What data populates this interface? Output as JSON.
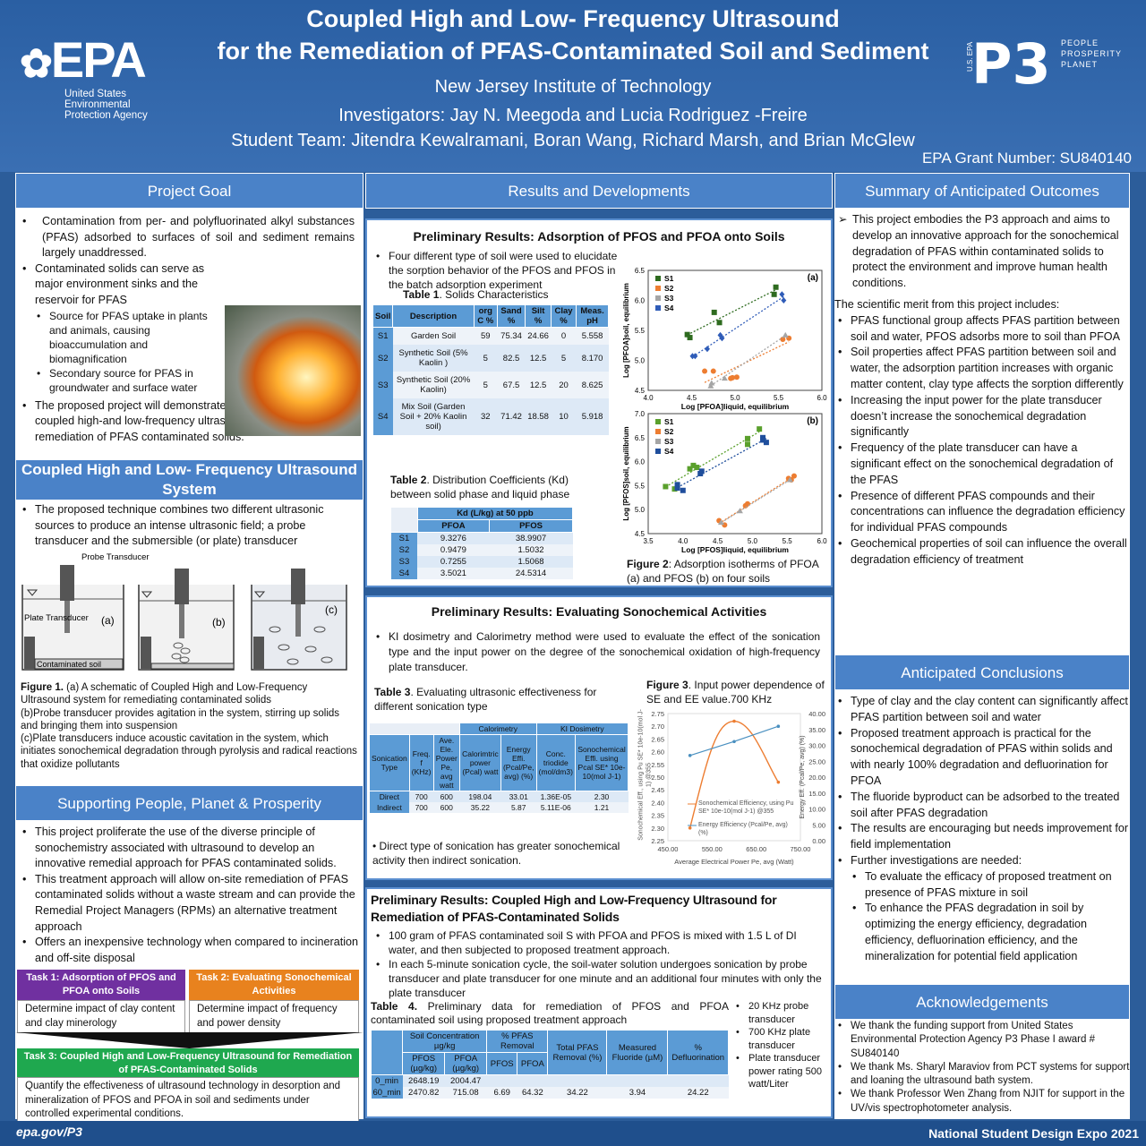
{
  "header": {
    "title_line1": "Coupled High and Low- Frequency Ultrasound",
    "title_line2": "for the Remediation of PFAS-Contaminated Soil and Sediment",
    "institution": "New Jersey Institute of Technology",
    "investigators": "Investigators: Jay N. Meegoda and Lucia Rodriguez -Freire",
    "student_team": "Student Team: Jitendra Kewalramani, Boran Wang, Richard Marsh, and Brian McGlew",
    "grant": "EPA Grant Number: SU840140"
  },
  "epa_logo": {
    "name": "EPA",
    "line1": "United States",
    "line2": "Environmental",
    "line3": "Protection Agency"
  },
  "p3_logo": {
    "mark": "P3",
    "side": "U.S. EPA",
    "w1": "PEOPLE",
    "w2": "PROSPERITY",
    "w3": "PLANET"
  },
  "project_goal": {
    "heading": "Project Goal",
    "b1": "Contamination from per- and polyfluorinated alkyl substances (PFAS) adsorbed to surfaces of soil and sediment remains largely unaddressed.",
    "b2": "Contaminated solids can serve as major environment sinks and the reservoir for PFAS",
    "s1": "Source for PFAS uptake in plants and animals, causing bioaccumulation and biomagnification",
    "s2": "Secondary source for PFAS in groundwater and surface water",
    "b3": "The proposed project will  demonstrate the feasibility of the coupled high-and low-frequency ultrasound technology for remediation of PFAS contaminated solids."
  },
  "coupled_system": {
    "heading": "Coupled High and Low- Frequency Ultrasound System",
    "b1": "The proposed technique combines two different ultrasonic sources to produce an intense ultrasonic field; a probe transducer and the submersible (or plate) transducer",
    "label_probe": "Probe Transducer",
    "label_plate": "Plate Transducer",
    "label_soil": "Contaminated soil",
    "a": "(a)",
    "b": "(b)",
    "c": "(c)",
    "fig_label": "Figure 1.",
    "fig_caption": " (a) A schematic of Coupled High and Low-Frequency Ultrasound system for remediating contaminated solids",
    "fig_b": "(b)Probe transducer provides agitation in the system, stirring up solids and bringing them into suspension",
    "fig_c": "(c)Plate transducers induce acoustic cavitation in the system, which initiates sonochemical degradation through pyrolysis and radical reactions that oxidize pollutants"
  },
  "supporting": {
    "heading": "Supporting People, Planet & Prosperity",
    "b1": "This project proliferate the use of the diverse principle of sonochemistry associated with ultrasound to develop an innovative remedial approach for PFAS contaminated solids.",
    "b2": "This treatment approach will allow on-site remediation of PFAS contaminated solids without a waste stream and can provide the Remedial Project Managers (RPMs) an alternative treatment approach",
    "b3": "Offers an inexpensive technology when compared to incineration and off-site disposal"
  },
  "tasks": [
    {
      "title": "Task 1: Adsorption of PFOS and PFOA onto Soils",
      "body": "Determine impact of clay content and clay minerology",
      "color": "#7030a0"
    },
    {
      "title": "Task 2: Evaluating Sonochemical Activities",
      "body": "Determine impact of frequency and power density",
      "color": "#e8821e"
    },
    {
      "title": "Task 3: Coupled High and Low-Frequency Ultrasound for Remediation of PFAS-Contaminated Solids",
      "body": "Quantify the effectiveness of ultrasound technology in desorption and mineralization of PFOS  and PFOA in soil and sediments under controlled experimental conditions.",
      "color": "#1fa84f"
    }
  ],
  "results": {
    "heading": "Results and Developments",
    "p1": {
      "title": "Preliminary Results: Adsorption of PFOS and PFOA onto Soils",
      "b1": "Four different type of soil were used to elucidate the sorption behavior of the PFOS and PFOS  in the batch adsorption experiment",
      "table1": {
        "label": "Table 1",
        "caption": ". Solids Characteristics",
        "headers": [
          "Soil",
          "Description",
          "org C %",
          "Sand %",
          "Silt %",
          "Clay %",
          "Meas. pH"
        ],
        "rows": [
          [
            "S1",
            "Garden Soil",
            "59",
            "75.34",
            "24.66",
            "0",
            "5.558"
          ],
          [
            "S2",
            "Synthetic Soil (5%  Kaolin )",
            "5",
            "82.5",
            "12.5",
            "5",
            "8.170"
          ],
          [
            "S3",
            "Synthetic Soil (20%  Kaolin)",
            "5",
            "67.5",
            "12.5",
            "20",
            "8.625"
          ],
          [
            "S4",
            "Mix Soil (Garden Soil + 20% Kaolin soil)",
            "32",
            "71.42",
            "18.58",
            "10",
            "5.918"
          ]
        ]
      },
      "table2": {
        "label": "Table 2",
        "caption": ". Distribution Coefficients (Kd) between solid phase and liquid phase",
        "group": "Kd (L/kg) at 50 ppb",
        "headers": [
          "PFOA",
          "PFOS"
        ],
        "rows": [
          [
            "S1",
            "9.3276",
            "38.9907"
          ],
          [
            "S2",
            "0.9479",
            "1.5032"
          ],
          [
            "S3",
            "0.7255",
            "1.5068"
          ],
          [
            "S4",
            "3.5021",
            "24.5314"
          ]
        ]
      },
      "fig_label": "Figure 2",
      "fig_caption": ": Adsorption isotherms of PFOA (a) and PFOS (b) on four soils"
    },
    "p2": {
      "title": "Preliminary Results: Evaluating Sonochemical Activities",
      "b1": "KI dosimetry and Calorimetry method were used to evaluate the effect of the sonication type and the  input power on the degree of the sonochemical oxidation of high-frequency plate transducer.",
      "table3": {
        "label": "Table  3",
        "caption": ". Evaluating ultrasonic effectiveness for different sonication type",
        "group1": "Calorimetry",
        "group2": "KI Dosimetry",
        "headers": [
          "Sonication Type",
          "Freq. f (KHz)",
          "Ave. Ele. Power Pe, avg watt",
          "Calorimtric power (Pcal) watt",
          "Energy Effi. (Pcal/Pe, avg) (%)",
          "Conc. triodide (mol/dm3)",
          "Sonochemical Effi. using Pcal SE* 10e-10(mol J-1)"
        ],
        "rows": [
          [
            "Direct",
            "700",
            "600",
            "198.04",
            "33.01",
            "1.36E-05",
            "2.30"
          ],
          [
            "Indirect",
            "700",
            "600",
            "35.22",
            "5.87",
            "5.11E-06",
            "1.21"
          ]
        ]
      },
      "b2": "Direct type of sonication has greater sonochemical activity then indirect sonication.",
      "fig_label": "Figure 3",
      "fig_caption": ". Input power dependence of SE and EE value.700 KHz"
    },
    "p3": {
      "title": "Preliminary Results: Coupled High and Low-Frequency Ultrasound for Remediation of PFAS-Contaminated Solids",
      "b1": "100 gram of PFAS contaminated soil S with PFOA and PFOS  is mixed with 1.5 L of DI water, and then subjected to proposed treatment approach.",
      "b2": "In each 5-minute sonication cycle, the soil-water solution undergoes sonication by probe transducer and plate transducer for one minute and an additional four minutes with only the plate transducer",
      "table4": {
        "label": "Table  4.",
        "caption": " Preliminary data for remediation of PFOS and PFOA contaminated soil using proposed treatment approach",
        "h_conc": "Soil Concentration µg/kg",
        "h_rem": "% PFAS Removal",
        "h_total": "Total PFAS Removal (%)",
        "h_fluor": "Measured Fluoride (µM)",
        "h_defl": "% Defluorination",
        "sub": [
          "PFOS (µg/kg)",
          "PFOA (µg/kg)",
          "PFOS",
          "PFOA"
        ],
        "rows": [
          [
            "0_min",
            "2648.19",
            "2004.47",
            "",
            "",
            "",
            "",
            ""
          ],
          [
            "60_min",
            "2470.82",
            "715.08",
            "6.69",
            "64.32",
            "34.22",
            "3.94",
            "24.22"
          ]
        ]
      },
      "side": [
        "20 KHz probe transducer",
        "700 KHz plate transducer",
        "Plate transducer power rating 500 watt/Liter"
      ]
    }
  },
  "summary": {
    "heading": "Summary of  Anticipated Outcomes",
    "intro": "This project embodies the P3 approach and aims to develop an innovative approach for the sonochemical degradation of PFAS within contaminated solids to protect the environment and improve human health conditions.",
    "merit": "The scientific merit from this project includes:",
    "items": [
      "PFAS functional group affects PFAS partition between soil and water, PFOS adsorbs more to soil than PFOA",
      "Soil properties affect PFAS partition between soil and water, the adsorption partition increases with organic matter content, clay type affects the sorption differently",
      "Increasing the input power for the plate transducer doesn’t increase the sonochemical degradation significantly",
      "Frequency of the plate transducer can have a significant effect on the sonochemical degradation of the PFAS",
      "Presence of different PFAS compounds and their concentrations can influence the degradation efficiency for individual PFAS compounds",
      "Geochemical properties of soil can influence the overall degradation efficiency of treatment"
    ]
  },
  "conclusions": {
    "heading": "Anticipated Conclusions",
    "items": [
      "Type of clay and the clay content can significantly affect PFAS partition between soil and water",
      "Proposed treatment approach is practical for the sonochemical degradation of PFAS within solids and with nearly 100% degradation and defluorination for PFOA",
      "The fluoride byproduct can be adsorbed to the treated soil after PFAS degradation",
      "The results are encouraging but needs improvement for field implementation",
      "Further investigations are needed:"
    ],
    "sub": [
      "To evaluate the efficacy of proposed treatment on presence of PFAS mixture in soil",
      "To enhance the PFAS degradation in soil by optimizing the energy efficiency, degradation efficiency, defluorination efficiency, and the mineralization for potential field application"
    ]
  },
  "ack": {
    "heading": "Acknowledgements",
    "items": [
      "We thank the funding support from United States Environmental Protection Agency P3 Phase I award # SU840140",
      "We thank Ms. Sharyl Maraviov from PCT systems for support and loaning the ultrasound bath system.",
      "We thank  Professor Wen Zhang from NJIT for support in the UV/vis spectrophotometer analysis."
    ]
  },
  "footer": {
    "left": "epa.gov/P3",
    "right": "National Student Design Expo 2021"
  },
  "chart_data": [
    {
      "type": "scatter",
      "panel": "(a)",
      "xlabel": "Log [PFOA]liquid, equilibrium",
      "ylabel": "Log [PFOA]soil, equilibrium",
      "xlim": [
        4.0,
        6.0
      ],
      "ylim": [
        4.5,
        6.5
      ],
      "xticks": [
        "4.0",
        "4.5",
        "5.0",
        "5.5",
        "6.0"
      ],
      "yticks": [
        "4.5",
        "5.0",
        "5.5",
        "6.0",
        "6.5"
      ],
      "legend": "top-left",
      "trendlines": true,
      "series": [
        {
          "name": "S1",
          "color": "#2e6b1f",
          "marker": "square",
          "points": [
            [
              4.45,
              5.43
            ],
            [
              4.48,
              5.38
            ],
            [
              4.76,
              5.8
            ],
            [
              4.82,
              5.63
            ],
            [
              5.45,
              6.1
            ],
            [
              5.47,
              6.22
            ]
          ]
        },
        {
          "name": "S2",
          "color": "#ed7d31",
          "marker": "circle",
          "points": [
            [
              4.65,
              4.82
            ],
            [
              4.75,
              4.82
            ],
            [
              4.95,
              4.7
            ],
            [
              4.97,
              4.71
            ],
            [
              5.02,
              4.72
            ],
            [
              5.55,
              5.35
            ],
            [
              5.62,
              5.37
            ]
          ]
        },
        {
          "name": "S3",
          "color": "#a5a5a5",
          "marker": "triangle",
          "points": [
            [
              4.72,
              4.57
            ],
            [
              4.73,
              4.62
            ],
            [
              4.88,
              4.7
            ],
            [
              5.58,
              5.42
            ]
          ]
        },
        {
          "name": "S4",
          "color": "#2f5cb8",
          "marker": "diamond",
          "points": [
            [
              4.51,
              5.07
            ],
            [
              4.54,
              5.07
            ],
            [
              4.68,
              5.19
            ],
            [
              4.83,
              5.42
            ],
            [
              4.85,
              5.37
            ],
            [
              5.54,
              6.1
            ],
            [
              5.56,
              6.0
            ]
          ]
        }
      ]
    },
    {
      "type": "scatter",
      "panel": "(b)",
      "xlabel": "Log [PFOS]liquid, equilibrium",
      "ylabel": "Log [PFOS]soil, equilibrium",
      "xlim": [
        3.5,
        6.0
      ],
      "ylim": [
        4.5,
        7.0
      ],
      "xticks": [
        "3.5",
        "4.0",
        "4.5",
        "5.0",
        "5.5",
        "6.0"
      ],
      "yticks": [
        "4.5",
        "5.0",
        "5.5",
        "6.0",
        "6.5",
        "7.0"
      ],
      "legend": "top-left",
      "trendlines": true,
      "series": [
        {
          "name": "S1",
          "color": "#5aa02c",
          "marker": "square",
          "points": [
            [
              3.75,
              5.48
            ],
            [
              3.88,
              5.43
            ],
            [
              4.1,
              5.85
            ],
            [
              4.15,
              5.92
            ],
            [
              4.2,
              5.88
            ],
            [
              4.93,
              6.48
            ],
            [
              4.93,
              6.36
            ],
            [
              5.1,
              6.68
            ]
          ]
        },
        {
          "name": "S2",
          "color": "#ed7d31",
          "marker": "circle",
          "points": [
            [
              4.52,
              4.77
            ],
            [
              4.6,
              4.68
            ],
            [
              4.9,
              5.08
            ],
            [
              4.93,
              5.12
            ],
            [
              5.52,
              5.65
            ],
            [
              5.56,
              5.62
            ],
            [
              5.6,
              5.7
            ]
          ]
        },
        {
          "name": "S3",
          "color": "#a5a5a5",
          "marker": "triangle",
          "points": [
            [
              4.55,
              4.73
            ],
            [
              4.82,
              4.97
            ],
            [
              5.54,
              5.62
            ]
          ]
        },
        {
          "name": "S4",
          "color": "#1f4e9c",
          "marker": "square",
          "points": [
            [
              3.92,
              5.52
            ],
            [
              3.92,
              5.45
            ],
            [
              4.0,
              5.4
            ],
            [
              4.25,
              5.75
            ],
            [
              4.27,
              5.8
            ],
            [
              5.15,
              6.5
            ],
            [
              5.15,
              6.45
            ],
            [
              5.2,
              6.4
            ]
          ]
        }
      ]
    },
    {
      "type": "line",
      "xlabel": "Average Electrical Power Pe, avg  (Watt)",
      "ylabel": "Sonochemical Eff., using Pu SE* 10e-10(mol J-1) @355",
      "y2label": "Energy Eff.  (Pcal/Pe, avg) (%)",
      "xlim": [
        450,
        750
      ],
      "ylim": [
        2.25,
        2.75
      ],
      "y2lim": [
        0,
        40
      ],
      "xticks": [
        "450.00",
        "550.00",
        "650.00",
        "750.00"
      ],
      "yticks": [
        "2.25",
        "2.30",
        "2.35",
        "2.40",
        "2.45",
        "2.50",
        "2.55",
        "2.60",
        "2.65",
        "2.70",
        "2.75"
      ],
      "y2ticks": [
        "0.00",
        "5.00",
        "10.00",
        "15.00",
        "20.00",
        "25.00",
        "30.00",
        "35.00",
        "40.00"
      ],
      "legend": "bottom-center",
      "series": [
        {
          "name": "Sonochemical Efficiency, using Pu SE* 10e-10(mol J-1) @355",
          "axis": "left",
          "color": "#ed7d31",
          "x": [
            500,
            600,
            700
          ],
          "y": [
            2.3,
            2.72,
            2.48
          ]
        },
        {
          "name": "Energy Efficiency  (Pcal/Pe, avg) (%)",
          "axis": "right",
          "color": "#4a90c0",
          "x": [
            500,
            600,
            700
          ],
          "y": [
            26.8,
            31.2,
            36
          ]
        }
      ]
    }
  ]
}
